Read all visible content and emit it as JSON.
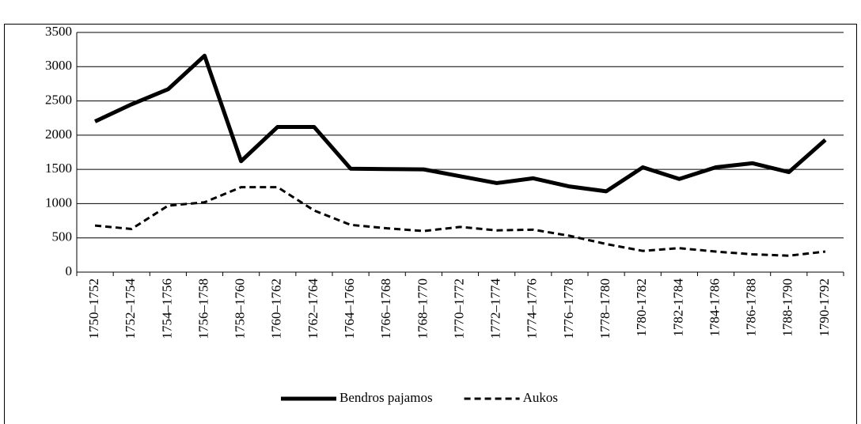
{
  "chart_data": {
    "type": "line",
    "categories": [
      "1750–1752",
      "1752–1754",
      "1754–1756",
      "1756–1758",
      "1758–1760",
      "1760–1762",
      "1762–1764",
      "1764–1766",
      "1766–1768",
      "1768–1770",
      "1770–1772",
      "1772–1774",
      "1774–1776",
      "1776–1778",
      "1778–1780",
      "1780-1782",
      "1782-1784",
      "1784-1786",
      "1786-1788",
      "1788-1790",
      "1790-1792"
    ],
    "series": [
      {
        "name": "Bendros pajamos",
        "color": "#000000",
        "dash": "solid",
        "values": [
          2200,
          2450,
          2670,
          3160,
          1620,
          2120,
          2120,
          1510,
          1505,
          1500,
          1400,
          1300,
          1370,
          1250,
          1180,
          1530,
          1360,
          1530,
          1590,
          1460,
          1930
        ]
      },
      {
        "name": "Aukos",
        "color": "#000000",
        "dash": "dashed",
        "values": [
          680,
          630,
          970,
          1020,
          1240,
          1240,
          900,
          690,
          640,
          600,
          660,
          610,
          620,
          530,
          410,
          310,
          350,
          300,
          260,
          240,
          300
        ]
      }
    ],
    "ylim": [
      0,
      3500
    ],
    "yticks": [
      0,
      500,
      1000,
      1500,
      2000,
      2500,
      3000,
      3500
    ],
    "grid": true,
    "legend": "bottom"
  }
}
